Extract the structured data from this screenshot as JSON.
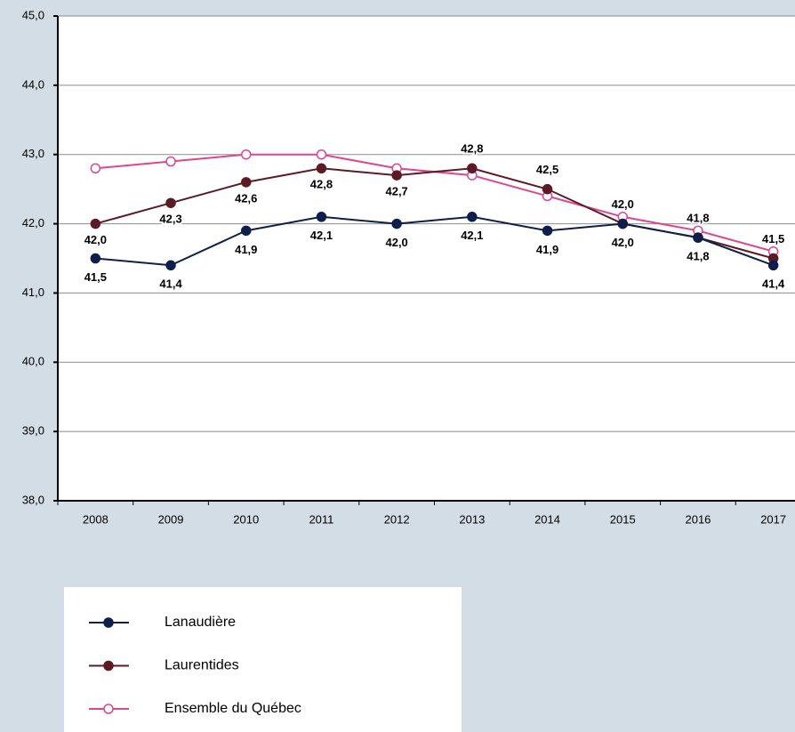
{
  "chart_data": {
    "type": "line",
    "categories": [
      "2008",
      "2009",
      "2010",
      "2011",
      "2012",
      "2013",
      "2014",
      "2015",
      "2016",
      "2017"
    ],
    "series": [
      {
        "name": "Lanaudière",
        "color": "#0d1f4a",
        "values": [
          41.5,
          41.4,
          41.9,
          42.1,
          42.0,
          42.1,
          41.9,
          42.0,
          41.8,
          41.4
        ],
        "value_labels": [
          "41,5",
          "41,4",
          "41,9",
          "42,1",
          "42,0",
          "42,1",
          "41,9",
          "42,0",
          "41,8",
          "41,4"
        ]
      },
      {
        "name": "Laurentides",
        "color": "#5c1a24",
        "values": [
          42.0,
          42.3,
          42.6,
          42.8,
          42.7,
          42.8,
          42.5,
          42.0,
          41.8,
          41.5
        ],
        "value_labels": [
          "42,0",
          "42,3",
          "42,6",
          "42,8",
          "42,7",
          "42,8",
          "42,5",
          "42,0",
          "41,8",
          "41,5"
        ]
      },
      {
        "name": "Ensemble du Québec",
        "color": "#e0458f",
        "values": [
          42.8,
          42.9,
          43.0,
          43.0,
          42.8,
          42.7,
          42.4,
          42.1,
          41.9,
          41.6
        ]
      }
    ],
    "ylim": [
      38,
      45
    ],
    "yticks": [
      {
        "value": 38,
        "label": "38,0"
      },
      {
        "value": 39,
        "label": "39,0"
      },
      {
        "value": 40,
        "label": "40,0"
      },
      {
        "value": 41,
        "label": "41,0"
      },
      {
        "value": 42,
        "label": "42,0"
      },
      {
        "value": 43,
        "label": "43,0"
      },
      {
        "value": 44,
        "label": "44,0"
      },
      {
        "value": 45,
        "label": "45,0"
      }
    ],
    "grid": true
  }
}
